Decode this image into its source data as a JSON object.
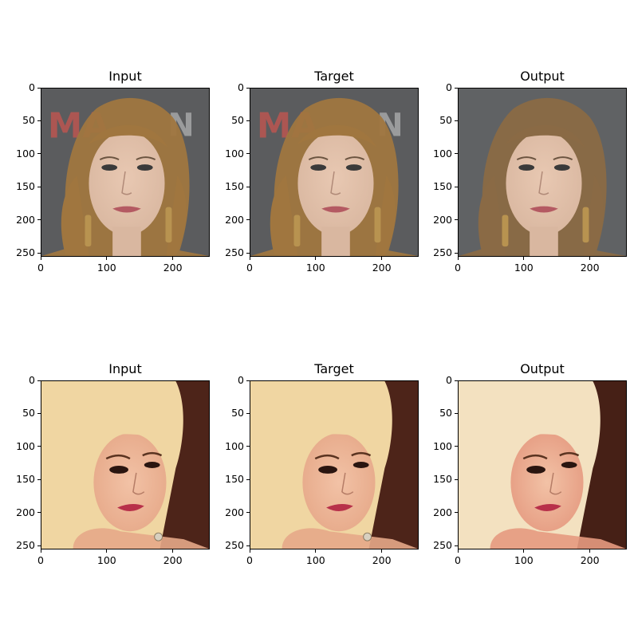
{
  "figure": {
    "rows": [
      {
        "panels": [
          {
            "title": "Input",
            "image": "face-photo-brunette-input"
          },
          {
            "title": "Target",
            "image": "face-photo-brunette-target"
          },
          {
            "title": "Output",
            "image": "face-photo-brunette-output"
          }
        ]
      },
      {
        "panels": [
          {
            "title": "Input",
            "image": "face-photo-blonde-input"
          },
          {
            "title": "Target",
            "image": "face-photo-blonde-target"
          },
          {
            "title": "Output",
            "image": "face-photo-blonde-output"
          }
        ]
      }
    ],
    "y_ticks": [
      "0",
      "50",
      "100",
      "150",
      "200",
      "250"
    ],
    "x_ticks": [
      "0",
      "100",
      "200"
    ]
  },
  "colors": {
    "row1_bg": "#5b5c5e",
    "row1_hair": "#a0763f",
    "row1_skin": "#d9b7a0",
    "row1_lips": "#b45a62",
    "row1_logo": "#c8544f",
    "row2_bg": "#3a1d14",
    "row2_hair": "#f0d6a2",
    "row2_skin": "#e6a888",
    "row2_lips": "#b8304a"
  }
}
